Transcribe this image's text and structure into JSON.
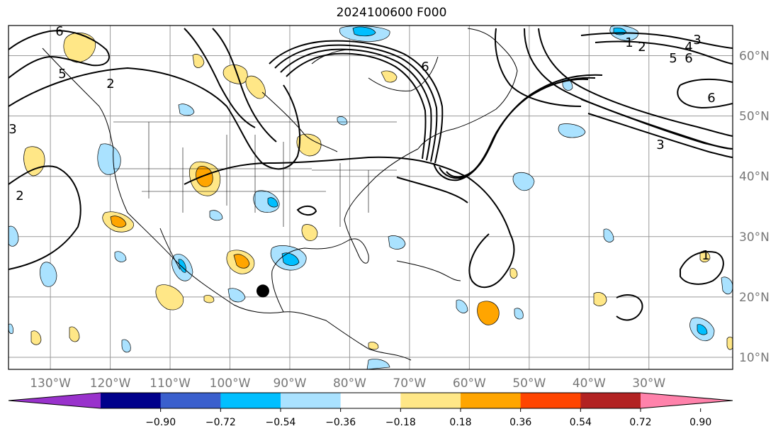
{
  "title": "2024100600 F000",
  "map": {
    "lon_range": [
      -137,
      -16
    ],
    "lat_range": [
      8,
      65
    ],
    "lon_ticks": [
      "130°W",
      "120°W",
      "110°W",
      "100°W",
      "90°W",
      "80°W",
      "70°W",
      "60°W",
      "50°W",
      "40°W",
      "30°W"
    ],
    "lat_ticks": [
      "10°N",
      "20°N",
      "30°N",
      "40°N",
      "50°N",
      "60°N"
    ],
    "marker": {
      "lon": -94.5,
      "lat": 21.0,
      "color": "#000000"
    },
    "contour_labels": [
      "6",
      "5",
      "2",
      "3",
      "2",
      "6",
      "1",
      "2",
      "4",
      "3",
      "5",
      "6",
      "6",
      "3",
      "1"
    ]
  },
  "colorbar": {
    "colors": [
      "#9932cc",
      "#00008b",
      "#3a5fcd",
      "#00bfff",
      "#aae2ff",
      "#ffffff",
      "#ffe787",
      "#ffa500",
      "#ff4500",
      "#b22222",
      "#ff82ab"
    ],
    "tick_labels": [
      "−0.90",
      "−0.72",
      "−0.54",
      "−0.36",
      "−0.18",
      "0.18",
      "0.36",
      "0.54",
      "0.72",
      "0.90"
    ]
  }
}
